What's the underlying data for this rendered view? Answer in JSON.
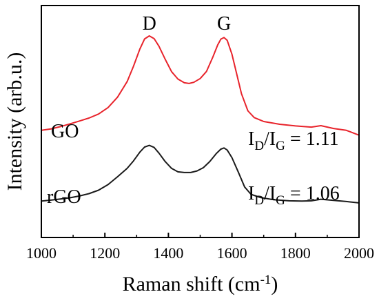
{
  "chart_data": {
    "type": "line",
    "xlabel_main": "Raman shift (cm",
    "xlabel_sup": "-1",
    "xlabel_end": ")",
    "ylabel": "Intensity (arb.u.)",
    "xlim": [
      1000,
      2000
    ],
    "x_ticks": [
      "1000",
      "1200",
      "1400",
      "1600",
      "1800",
      "2000"
    ],
    "y_ticks_shown": false,
    "grid": false,
    "ylim": [
      0,
      1.0
    ],
    "peak_labels": [
      {
        "text": "D",
        "x": 1340
      },
      {
        "text": "G",
        "x": 1575
      }
    ],
    "series": [
      {
        "name": "GO",
        "color": "#e8232b",
        "ratio": {
          "I": "I",
          "sub1": "D",
          "slash": "/I",
          "sub2": "G",
          "value": " = 1.11"
        },
        "points": [
          [
            1000,
            0.462
          ],
          [
            1030,
            0.468
          ],
          [
            1060,
            0.478
          ],
          [
            1090,
            0.49
          ],
          [
            1120,
            0.502
          ],
          [
            1150,
            0.515
          ],
          [
            1180,
            0.532
          ],
          [
            1210,
            0.56
          ],
          [
            1240,
            0.605
          ],
          [
            1270,
            0.672
          ],
          [
            1290,
            0.738
          ],
          [
            1310,
            0.812
          ],
          [
            1325,
            0.856
          ],
          [
            1340,
            0.869
          ],
          [
            1355,
            0.857
          ],
          [
            1370,
            0.825
          ],
          [
            1390,
            0.768
          ],
          [
            1410,
            0.715
          ],
          [
            1430,
            0.683
          ],
          [
            1450,
            0.667
          ],
          [
            1465,
            0.664
          ],
          [
            1480,
            0.669
          ],
          [
            1500,
            0.685
          ],
          [
            1520,
            0.716
          ],
          [
            1540,
            0.778
          ],
          [
            1555,
            0.83
          ],
          [
            1565,
            0.855
          ],
          [
            1575,
            0.862
          ],
          [
            1585,
            0.85
          ],
          [
            1600,
            0.79
          ],
          [
            1615,
            0.705
          ],
          [
            1630,
            0.62
          ],
          [
            1650,
            0.546
          ],
          [
            1670,
            0.517
          ],
          [
            1700,
            0.5
          ],
          [
            1750,
            0.488
          ],
          [
            1800,
            0.481
          ],
          [
            1850,
            0.476
          ],
          [
            1880,
            0.482
          ],
          [
            1920,
            0.47
          ],
          [
            1960,
            0.462
          ],
          [
            2000,
            0.441
          ]
        ]
      },
      {
        "name": "rGO",
        "color": "#1a1a1a",
        "ratio": {
          "I": "I",
          "sub1": "D",
          "slash": "/I",
          "sub2": "G",
          "value": " = 1.06"
        },
        "points": [
          [
            1000,
            0.157
          ],
          [
            1030,
            0.161
          ],
          [
            1060,
            0.166
          ],
          [
            1090,
            0.171
          ],
          [
            1120,
            0.179
          ],
          [
            1150,
            0.189
          ],
          [
            1180,
            0.204
          ],
          [
            1210,
            0.228
          ],
          [
            1240,
            0.262
          ],
          [
            1270,
            0.298
          ],
          [
            1290,
            0.33
          ],
          [
            1310,
            0.368
          ],
          [
            1325,
            0.39
          ],
          [
            1340,
            0.397
          ],
          [
            1355,
            0.388
          ],
          [
            1370,
            0.364
          ],
          [
            1390,
            0.327
          ],
          [
            1410,
            0.298
          ],
          [
            1430,
            0.283
          ],
          [
            1450,
            0.28
          ],
          [
            1470,
            0.28
          ],
          [
            1490,
            0.287
          ],
          [
            1510,
            0.301
          ],
          [
            1530,
            0.327
          ],
          [
            1550,
            0.361
          ],
          [
            1565,
            0.381
          ],
          [
            1575,
            0.386
          ],
          [
            1585,
            0.377
          ],
          [
            1600,
            0.344
          ],
          [
            1620,
            0.282
          ],
          [
            1640,
            0.218
          ],
          [
            1660,
            0.186
          ],
          [
            1690,
            0.172
          ],
          [
            1730,
            0.163
          ],
          [
            1780,
            0.158
          ],
          [
            1820,
            0.157
          ],
          [
            1850,
            0.158
          ],
          [
            1880,
            0.165
          ],
          [
            1920,
            0.16
          ],
          [
            1960,
            0.155
          ],
          [
            2000,
            0.149
          ]
        ]
      }
    ]
  }
}
